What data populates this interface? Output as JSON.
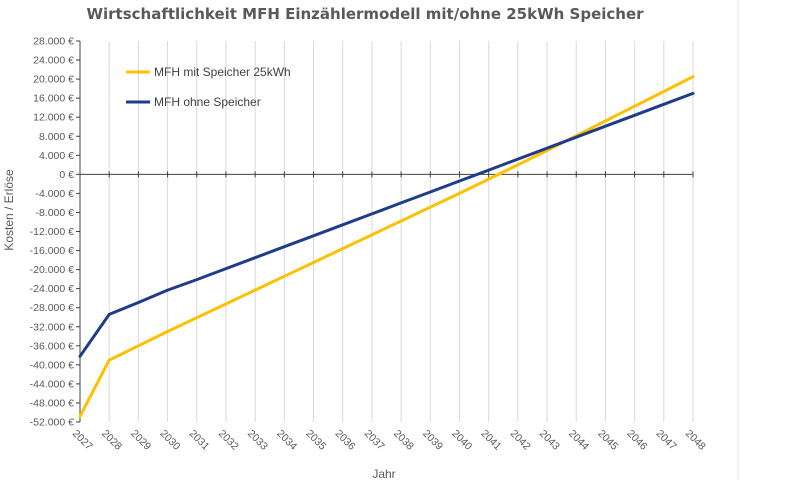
{
  "chart_data": {
    "type": "line",
    "title": "Wirtschaftlichkeit MFH Einzählermodell mit/ohne 25kWh Speicher",
    "xlabel": "Jahr",
    "ylabel": "Kosten / Erlöse",
    "x": [
      "2027",
      "2028",
      "2029",
      "2030",
      "2031",
      "2032",
      "2033",
      "2034",
      "2035",
      "2036",
      "2037",
      "2038",
      "2039",
      "2040",
      "2041",
      "2042",
      "2043",
      "2044",
      "2045",
      "2046",
      "2047",
      "2048"
    ],
    "ylim": [
      -52000,
      28000
    ],
    "ytick_step": 4000,
    "ytick_labels": [
      "28.000 €",
      "24.000 €",
      "20.000 €",
      "16.000 €",
      "12.000 €",
      "8.000 €",
      "4.000 €",
      "0 €",
      "-4.000 €",
      "-8.000 €",
      "-12.000 €",
      "-16.000 €",
      "-20.000 €",
      "-24.000 €",
      "-28.000 €",
      "-32.000 €",
      "-36.000 €",
      "-40.000 €",
      "-44.000 €",
      "-48.000 €",
      "-52.000 €"
    ],
    "grid": "vertical",
    "legend_position": "top-left",
    "series": [
      {
        "name": "MFH mit Speicher 25kWh",
        "color": "#FFC000",
        "values": [
          -50800,
          -39000,
          -36000,
          -33000,
          -30100,
          -27200,
          -24300,
          -21400,
          -18500,
          -15600,
          -12700,
          -9800,
          -6900,
          -4000,
          -1000,
          2000,
          5000,
          8100,
          11200,
          14300,
          17400,
          20500
        ]
      },
      {
        "name": "MFH ohne Speicher",
        "color": "#1F3C88",
        "values": [
          -38200,
          -29400,
          -26900,
          -24300,
          -22100,
          -19800,
          -17500,
          -15200,
          -12900,
          -10600,
          -8300,
          -6000,
          -3700,
          -1400,
          900,
          3200,
          5500,
          7800,
          10100,
          12400,
          14700,
          17000
        ]
      }
    ]
  }
}
